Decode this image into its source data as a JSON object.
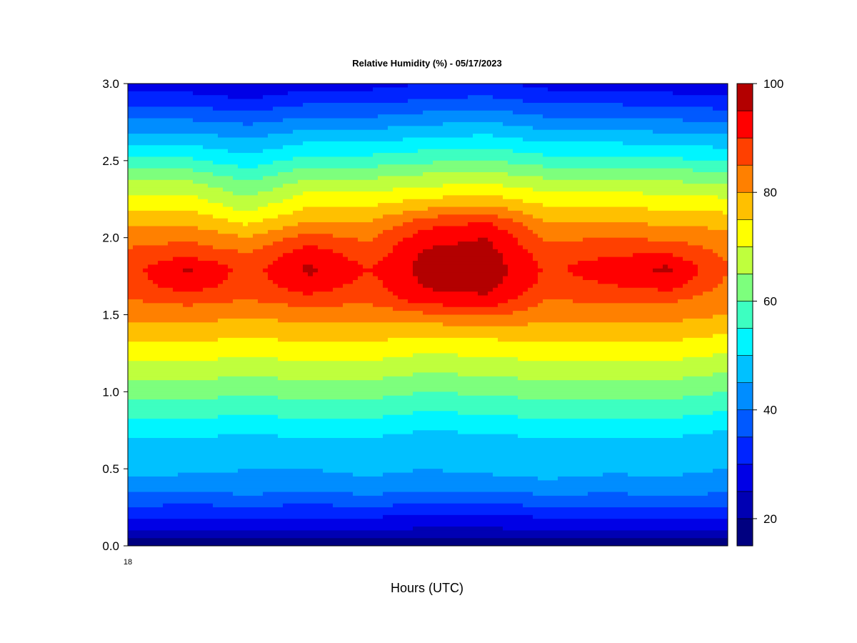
{
  "chart_data": {
    "type": "heatmap",
    "title": "Relative Humidity (%) - 05/17/2023",
    "xlabel": "Hours (UTC)",
    "ylabel": "",
    "x_tick_labels": [
      "18"
    ],
    "y_ticks": [
      0.0,
      0.5,
      1.0,
      1.5,
      2.0,
      2.5,
      3.0
    ],
    "y_tick_labels": [
      "0.0",
      "0.5",
      "1.0",
      "1.5",
      "2.0",
      "2.5",
      "3.0"
    ],
    "ylim": [
      0,
      3
    ],
    "xlim": [
      0,
      10
    ],
    "colorbar": {
      "ticks": [
        20,
        40,
        60,
        80,
        100
      ],
      "tick_labels": [
        "20",
        "40",
        "60",
        "80",
        "100"
      ],
      "range": [
        15,
        100
      ],
      "levels": [
        15,
        20,
        25,
        30,
        35,
        40,
        45,
        50,
        55,
        60,
        65,
        70,
        75,
        80,
        85,
        90,
        95,
        100
      ],
      "colors": [
        "#000080",
        "#0000b3",
        "#0000e6",
        "#0024ff",
        "#0059ff",
        "#008dff",
        "#00c1ff",
        "#00f5ff",
        "#3dffc1",
        "#7dff7d",
        "#bfff3d",
        "#ffff00",
        "#ffc000",
        "#ff8000",
        "#ff4000",
        "#ff0000",
        "#b30000",
        "#7a0000"
      ]
    },
    "x": [
      0,
      1,
      2,
      3,
      4,
      5,
      6,
      7,
      8,
      9,
      10
    ],
    "heights": [
      0.0,
      0.1,
      0.2,
      0.3,
      0.4,
      0.5,
      0.6,
      0.7,
      0.8,
      0.9,
      1.0,
      1.1,
      1.2,
      1.3,
      1.4,
      1.5,
      1.6,
      1.7,
      1.8,
      1.9,
      2.0,
      2.1,
      2.2,
      2.3,
      2.4,
      2.5,
      2.6,
      2.7,
      2.8,
      2.9,
      3.0
    ],
    "rh_profiles": [
      [
        15,
        25,
        31,
        38,
        43,
        47,
        47,
        50,
        54,
        58,
        62,
        66,
        70,
        74,
        78,
        82,
        85,
        87,
        88,
        86,
        83,
        79,
        74,
        69,
        63,
        56,
        50,
        44,
        38,
        32,
        27
      ],
      [
        15,
        25,
        31,
        37,
        43,
        46,
        47,
        50,
        54,
        58,
        62,
        66,
        70,
        74,
        78,
        82,
        87,
        94,
        96,
        88,
        84,
        79,
        74,
        69,
        63,
        56,
        50,
        44,
        38,
        32,
        27
      ],
      [
        15,
        25,
        31,
        38,
        44,
        45,
        46,
        49,
        53,
        57,
        61,
        65,
        69,
        73,
        77,
        81,
        85,
        87,
        88,
        85,
        80,
        74,
        68,
        63,
        58,
        52,
        47,
        42,
        36,
        30,
        25
      ],
      [
        15,
        25,
        31,
        37,
        43,
        45,
        46,
        50,
        54,
        58,
        62,
        66,
        70,
        74,
        78,
        82,
        88,
        94,
        96,
        93,
        87,
        80,
        75,
        70,
        64,
        57,
        51,
        45,
        39,
        33,
        28
      ],
      [
        15,
        25,
        31,
        38,
        44,
        46,
        47,
        50,
        54,
        58,
        62,
        66,
        70,
        74,
        78,
        82,
        86,
        88,
        90,
        87,
        84,
        80,
        75,
        70,
        64,
        57,
        51,
        45,
        39,
        33,
        28
      ],
      [
        15,
        24,
        30,
        37,
        43,
        45,
        45,
        48,
        52,
        56,
        60,
        64,
        68,
        72,
        77,
        84,
        93,
        96,
        97,
        96,
        93,
        88,
        79,
        72,
        66,
        59,
        53,
        47,
        41,
        35,
        30
      ],
      [
        15,
        24,
        30,
        37,
        43,
        46,
        47,
        49,
        53,
        57,
        61,
        65,
        69,
        73,
        78,
        86,
        94,
        97,
        98,
        97,
        95,
        90,
        81,
        73,
        67,
        60,
        54,
        48,
        42,
        36,
        31
      ],
      [
        15,
        25,
        31,
        38,
        44,
        47,
        47,
        50,
        54,
        58,
        62,
        66,
        70,
        74,
        78,
        82,
        85,
        88,
        89,
        87,
        84,
        80,
        75,
        70,
        64,
        57,
        51,
        45,
        39,
        33,
        28
      ],
      [
        15,
        25,
        31,
        38,
        43,
        46,
        47,
        50,
        54,
        58,
        62,
        66,
        70,
        74,
        78,
        82,
        86,
        90,
        93,
        89,
        85,
        80,
        75,
        70,
        64,
        57,
        51,
        45,
        39,
        33,
        28
      ],
      [
        15,
        25,
        31,
        38,
        44,
        46,
        47,
        50,
        54,
        58,
        62,
        66,
        70,
        74,
        78,
        82,
        86,
        93,
        96,
        90,
        84,
        79,
        74,
        69,
        63,
        56,
        50,
        44,
        38,
        32,
        27
      ],
      [
        15,
        25,
        31,
        38,
        43,
        45,
        45,
        48,
        52,
        56,
        60,
        64,
        68,
        72,
        76,
        80,
        82,
        84,
        85,
        84,
        82,
        78,
        73,
        68,
        62,
        55,
        49,
        43,
        37,
        31,
        26
      ]
    ]
  }
}
